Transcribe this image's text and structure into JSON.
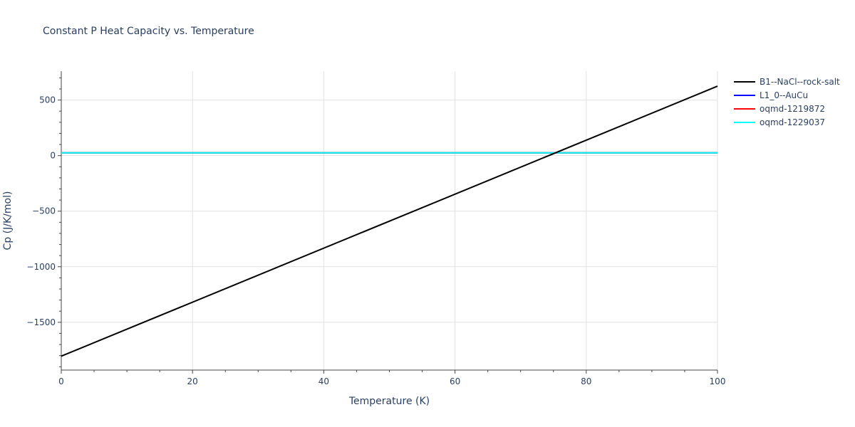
{
  "chart_data": {
    "type": "line",
    "title": "Constant P Heat Capacity vs. Temperature",
    "xlabel": "Temperature (K)",
    "ylabel": "Cp (J/K/mol)",
    "xlim": [
      0,
      100
    ],
    "ylim": [
      -1930,
      760
    ],
    "xticks": [
      0,
      20,
      40,
      60,
      80,
      100
    ],
    "xtick_labels": [
      "0",
      "20",
      "40",
      "60",
      "80",
      "100"
    ],
    "yticks": [
      -1500,
      -1000,
      -500,
      0,
      500
    ],
    "ytick_labels": [
      "−1500",
      "−1000",
      "−500",
      "0",
      "500"
    ],
    "grid": true,
    "legend_position": "top-right outside",
    "series": [
      {
        "name": "B1--NaCl--rock-salt",
        "color": "#000000",
        "x": [
          0,
          100
        ],
        "y": [
          -1805,
          625
        ]
      },
      {
        "name": "L1_0--AuCu",
        "color": "#0000ff",
        "x": [
          0,
          100
        ],
        "y": [
          25,
          25
        ]
      },
      {
        "name": "oqmd-1219872",
        "color": "#ff0000",
        "x": [
          0,
          100
        ],
        "y": [
          25,
          25
        ]
      },
      {
        "name": "oqmd-1229037",
        "color": "#00ffff",
        "x": [
          0,
          100
        ],
        "y": [
          25,
          25
        ]
      }
    ]
  }
}
